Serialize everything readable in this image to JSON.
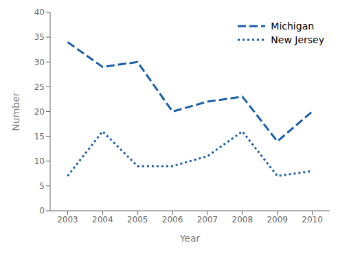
{
  "chart_data": {
    "type": "line",
    "x": [
      2003,
      2004,
      2005,
      2006,
      2007,
      2008,
      2009,
      2010
    ],
    "series": [
      {
        "name": "Michigan",
        "color": "#1a5ea8",
        "line_style": "dashed",
        "values": [
          34,
          29,
          30,
          20,
          22,
          23,
          14,
          20
        ]
      },
      {
        "name": "New Jersey",
        "color": "#1a5ea8",
        "line_style": "dotted",
        "values": [
          7,
          16,
          9,
          9,
          11,
          16,
          7,
          8
        ]
      }
    ],
    "xlabel": "Year",
    "ylabel": "Number",
    "xlim": [
      2002.5,
      2010.5
    ],
    "xticks": [
      2003,
      2004,
      2005,
      2006,
      2007,
      2008,
      2009,
      2010
    ],
    "ylim": [
      0,
      40
    ],
    "yticks": [
      0,
      5,
      10,
      15,
      20,
      25,
      30,
      35,
      40
    ],
    "grid": false,
    "legend": "upper right"
  }
}
